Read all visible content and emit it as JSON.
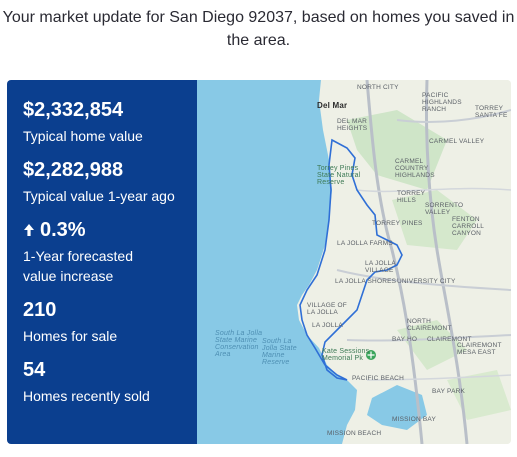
{
  "header": {
    "text": "Your market update for San Diego 92037, based on homes you saved in the area."
  },
  "stats": [
    {
      "value": "$2,332,854",
      "label": "Typical home value"
    },
    {
      "value": "$2,282,988",
      "label": "Typical value 1-year ago"
    },
    {
      "value": "0.3%",
      "label": "1-Year forecasted value increase",
      "icon": "up-arrow-icon"
    },
    {
      "value": "210",
      "label": "Homes for sale"
    },
    {
      "value": "54",
      "label": "Homes recently sold"
    }
  ],
  "map": {
    "labels": {
      "north_city": "North City",
      "del_mar": "Del Mar",
      "pacific_highlands": "Pacific Highlands Ranch",
      "torrey_santa_fe": "Torrey Santa Fe",
      "del_mar_heights": "Del Mar Heights",
      "carmel_valley": "Carmel Valley",
      "carmel_country": "Carmel Country Highlands",
      "torrey_pines_reserve": "Torrey Pines State Natural Reserve",
      "torrey_hills": "Torrey Hills",
      "sorrento_valley": "Sorrento Valley",
      "fenton_carroll": "Fenton Carroll Canyon",
      "torrey_pines": "Torrey Pines",
      "la_jolla_farms": "La Jolla Farms",
      "la_jolla_village": "La Jolla Village",
      "la_jolla_shores": "La Jolla Shores",
      "university_city": "University City",
      "village_of_la_jolla": "Village of La Jolla",
      "north_clairemont": "North Clairemont",
      "la_jolla": "La Jolla",
      "clairemont": "Clairemont",
      "la_jolla_conservation": "South La Jolla State Marine Conservation Area",
      "la_jolla_reserve": "South La Jolla State Marine Reserve",
      "bay_ho": "Bay Ho",
      "clairemont_mesa_east": "Clairemont Mesa East",
      "kate_sessions": "Kate Sessions Memorial Pk",
      "pacific_beach": "Pacific Beach",
      "bay_park": "Bay Park",
      "mission_bay": "Mission Bay",
      "mission_beach": "Mission Beach"
    }
  }
}
